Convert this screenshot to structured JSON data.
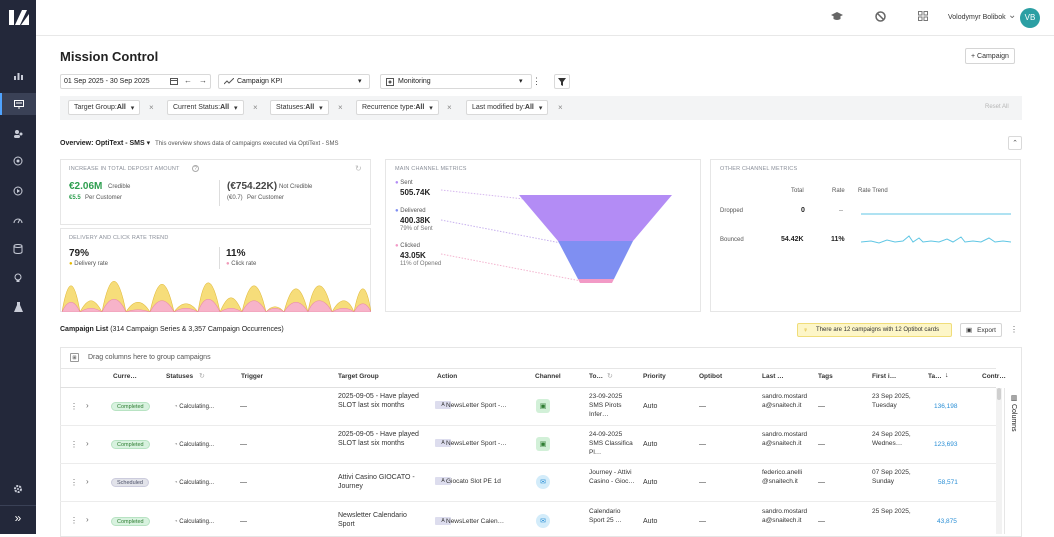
{
  "brand": {
    "logo": "logo-icon"
  },
  "nav": {
    "items": [
      "chart-icon",
      "campaign-icon",
      "users-icon",
      "target-icon",
      "play-icon",
      "gauge-icon",
      "database-icon",
      "bulb-icon",
      "flask-icon"
    ],
    "settings": "gear-icon",
    "expand_label": "»"
  },
  "topbar": {
    "user_name": "Volodymyr Bolibok",
    "avatar_initials": "VB",
    "chevron": "⌄"
  },
  "page": {
    "title": "Mission Control",
    "add_campaign_label": "+ Campaign"
  },
  "toolbar": {
    "date_range": "01 Sep 2025 - 30 Sep 2025",
    "kpi_select": "Campaign KPI",
    "view_select": "Monitoring"
  },
  "filters": [
    {
      "label": "Target Group: ",
      "value": "All"
    },
    {
      "label": "Current Status: ",
      "value": "All"
    },
    {
      "label": "Statuses: ",
      "value": "All"
    },
    {
      "label": "Recurrence type: ",
      "value": "All"
    },
    {
      "label": "Last modified by: ",
      "value": "All"
    }
  ],
  "reset_all": "Reset All",
  "overview": {
    "label": "Overview:",
    "channel": "OptiText - SMS",
    "caret": "▾",
    "description": "This overview shows data of campaigns executed via OptiText - SMS"
  },
  "deposit_card": {
    "title": "INCREASE IN TOTAL DEPOSIT AMOUNT",
    "credible_value": "€2.06M",
    "credible_label": "Credible",
    "credible_per": "€5.5",
    "credible_per_label": "Per Customer",
    "not_credible_value": "(€754.22K)",
    "not_credible_label": "Not Credible",
    "not_credible_per": "(€0.7)",
    "not_credible_per_label": "Per Customer"
  },
  "delivery_card": {
    "title": "DELIVERY AND CLICK RATE TREND",
    "delivery_value": "79%",
    "delivery_label": "Delivery rate",
    "click_value": "11%",
    "click_label": "Click rate"
  },
  "channel_card": {
    "title": "MAIN CHANNEL METRICS",
    "sent_label": "Sent",
    "sent_value": "505.74K",
    "delivered_label": "Delivered",
    "delivered_value": "400.38K",
    "delivered_sub": "79% of Sent",
    "clicked_label": "Clicked",
    "clicked_value": "43.05K",
    "clicked_sub": "11% of Opened"
  },
  "other_card": {
    "title": "OTHER CHANNEL METRICS",
    "col_total": "Total",
    "col_rate": "Rate",
    "col_trend": "Rate Trend",
    "rows": [
      {
        "label": "Dropped",
        "total": "0",
        "rate": "--"
      },
      {
        "label": "Bounced",
        "total": "54.42K",
        "rate": "11%"
      }
    ]
  },
  "campaign_list": {
    "title": "Campaign List",
    "subtitle": "(314 Campaign Series & 3,357 Campaign Occurrences)",
    "optibot_notice": "There are 12 campaigns with 12 Optibot cards",
    "export_label": "Export",
    "group_hint": "Drag columns here to group campaigns",
    "columns_label": "Columns"
  },
  "table": {
    "headers": [
      "Curre…",
      "Statuses",
      "Trigger",
      "Target Group",
      "Action",
      "Channel",
      "To…",
      "Priority",
      "Optibot",
      "Last …",
      "Tags",
      "First i…",
      "Ta…",
      "Contr…"
    ],
    "rows": [
      {
        "status": "Completed",
        "statuses": "Calculating...",
        "trigger": "—",
        "target": "2025-09-05 - Have played SLOT last six months",
        "action": "NewsLetter Sport -…",
        "channel": "sms",
        "to": "23-09-2025 SMS Pirots Infer…",
        "priority": "Auto",
        "optibot": "—",
        "last": "sandro.mostarda@snaitech.it",
        "tags": "—",
        "first": "23 Sep 2025, Tuesday",
        "ta": "136,198"
      },
      {
        "status": "Completed",
        "statuses": "Calculating...",
        "trigger": "—",
        "target": "2025-09-05 - Have played SLOT last six months",
        "action": "NewsLetter Sport -…",
        "channel": "sms",
        "to": "24-09-2025 SMS Classifica Pl…",
        "priority": "Auto",
        "optibot": "—",
        "last": "sandro.mostarda@snaitech.it",
        "tags": "—",
        "first": "24 Sep 2025, Wednes…",
        "ta": "123,693"
      },
      {
        "status": "Scheduled",
        "statuses": "Calculating...",
        "trigger": "—",
        "target": "Attivi Casino GIOCATO - Journey",
        "action": "Giocato Slot PE 1d",
        "channel": "email",
        "to": "Journey - Attivi Casino - Gioc…",
        "priority": "Auto",
        "optibot": "—",
        "last": "federico.anelli@snaitech.it",
        "tags": "—",
        "first": "07 Sep 2025, Sunday",
        "ta": "58,571"
      },
      {
        "status": "Completed",
        "statuses": "Calculating...",
        "trigger": "—",
        "target": "Newsletter Calendario Sport",
        "action": "NewsLetter Calen…",
        "channel": "email",
        "to": "Calendario Sport 25 …",
        "priority": "Auto",
        "optibot": "—",
        "last": "sandro.mostarda@snaitech.it",
        "tags": "—",
        "first": "25 Sep 2025,",
        "ta": "43,875"
      }
    ]
  },
  "colors": {
    "sidebar": "#23283a",
    "credible": "#2e9e4f",
    "funnel_top": "#b38cf5",
    "funnel_mid": "#7f8ff2",
    "funnel_bottom": "#f29ac6",
    "link": "#2a8fd6",
    "delivery_area": "#f6dd7a",
    "click_area": "#f7b3c9"
  }
}
